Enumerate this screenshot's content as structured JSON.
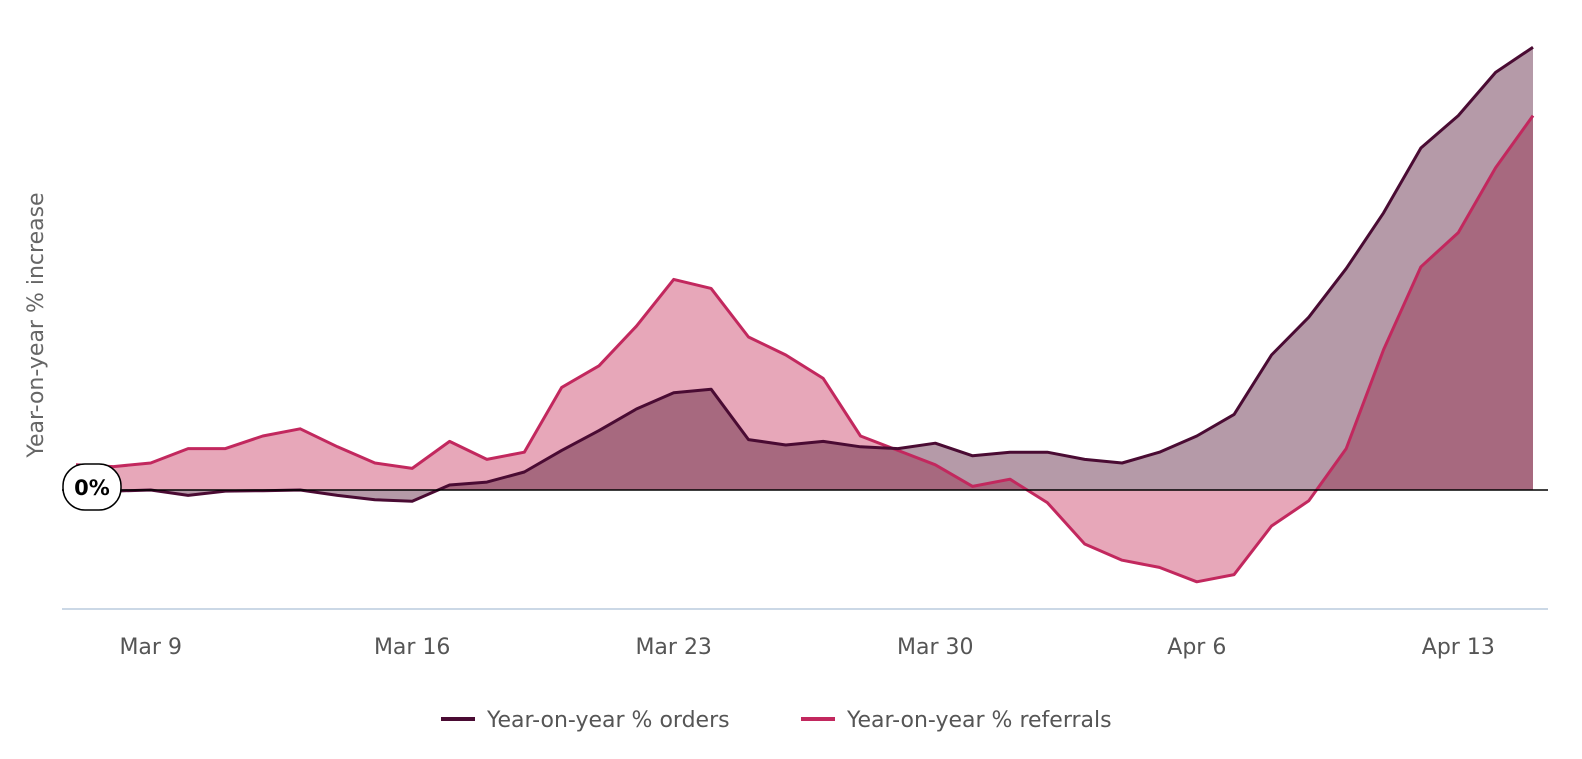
{
  "chart_data": {
    "type": "area",
    "title": "",
    "ylabel": "Year-on-year % increase",
    "xlabel": "",
    "zero_label": "0%",
    "x_start": "Mar 7",
    "x_ticks": [
      "Mar 9",
      "Mar 16",
      "Mar 23",
      "Mar 30",
      "Apr 6",
      "Apr 13"
    ],
    "ylim": [
      -32,
      120
    ],
    "grid": false,
    "legend_position": "bottom-center",
    "colors": {
      "orders_line": "#4A0B33",
      "orders_fill": "#B59AA8",
      "referrals_line": "#C2285E",
      "referrals_fill": "#E7A7B9",
      "overlap_fill": "#A7697F",
      "axis": "#000000",
      "baseline": "#CBD8E6"
    },
    "series": [
      {
        "name": "Year-on-year % orders",
        "color": "#4A0B33",
        "values": [
          0,
          -0.3,
          0,
          -1.5,
          -0.3,
          -0.2,
          0,
          -1.5,
          -2.7,
          -3.1,
          1.4,
          2.2,
          5,
          11,
          16.5,
          22.5,
          27,
          28,
          14,
          12.5,
          13.5,
          12,
          11.5,
          13,
          9.5,
          10.5,
          10.5,
          8.5,
          7.5,
          10.5,
          15,
          21,
          37.5,
          48,
          61.5,
          77,
          95,
          104,
          116,
          123
        ]
      },
      {
        "name": "Year-on-year % referrals",
        "color": "#C2285E",
        "values": [
          7,
          6.5,
          7.5,
          11.5,
          11.5,
          15,
          17,
          12,
          7.5,
          6,
          13.5,
          8.5,
          10.5,
          28.5,
          34.5,
          45.5,
          58.5,
          56,
          42.5,
          37.5,
          31,
          15,
          11,
          7,
          1,
          3,
          -3.5,
          -15,
          -19.5,
          -21.5,
          -25.5,
          -23.5,
          -10,
          -3,
          11.5,
          39,
          62,
          71.5,
          89.5,
          104
        ]
      }
    ]
  },
  "legend": [
    {
      "label": "Year-on-year % orders",
      "color": "#4A0B33"
    },
    {
      "label": "Year-on-year % referrals",
      "color": "#C2285E"
    }
  ]
}
